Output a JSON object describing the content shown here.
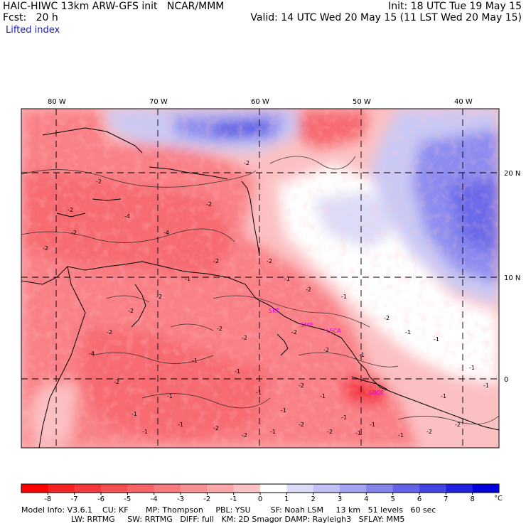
{
  "header": {
    "line1_left": "HAIC-HIWC 13km ARW-GFS init   NCAR/MMM",
    "line1_right": "Init: 18 UTC Tue 19 May 15",
    "line2_left": "Fcst:   20 h",
    "line2_right": "Valid: 14 UTC Wed 20 May 15 (11 LST Wed 20 May 15)",
    "line3": "Lifted index"
  },
  "map": {
    "lon_labels": [
      "80 W",
      "70 W",
      "60 W",
      "50 W",
      "40 W"
    ],
    "lat_labels": [
      "20 N",
      "10 N",
      "0"
    ],
    "contour_labels": [
      "-2",
      "-2",
      "-2",
      "-4",
      "-2",
      "-2",
      "-2",
      "-4",
      "-2",
      "-2",
      "-2",
      "-2",
      "-1",
      "-1",
      "-1",
      "-1",
      "-1",
      "-1",
      "-1",
      "-2",
      "-1",
      "-1",
      "-1",
      "-1",
      "-2",
      "-2",
      "-1",
      "-1",
      "-1",
      "-2",
      "-1",
      "-2",
      "-1",
      "-2",
      "-2",
      "-1",
      "-2",
      "-2",
      "-2",
      "-4",
      "-2",
      "-1",
      "-1",
      "-2",
      "-2",
      "-1",
      "-2",
      "-2",
      "-1",
      "-1",
      "-1"
    ],
    "station_labels": [
      "SKT",
      "SMP",
      "LSCA",
      "SBQE"
    ],
    "colors": {
      "warm_dark": "#f5333f",
      "warm_mid": "#f98086",
      "warm_light": "#fbc0c2",
      "neutral": "#ffffff",
      "cool_light": "#c9c9f5",
      "cool_mid": "#8c8cf0",
      "cool_dark": "#3c3ce0",
      "station": "#e000e0"
    }
  },
  "colorbar": {
    "labels": [
      "-8",
      "-7",
      "-6",
      "-5",
      "-4",
      "-3",
      "-2",
      "-1",
      "0",
      "1",
      "2",
      "3",
      "4",
      "5",
      "6",
      "7",
      "8"
    ],
    "unit": "°C",
    "colors": [
      "#ff0000",
      "#f52224",
      "#f5383c",
      "#f54e52",
      "#f66468",
      "#f67a7e",
      "#f79095",
      "#f8a6aa",
      "#fac2c4",
      "#ffffff",
      "#dcdcf8",
      "#c0c0f4",
      "#a2a2f0",
      "#8484ec",
      "#6464e8",
      "#4444e4",
      "#2222e0",
      "#0000dc"
    ]
  },
  "footer": {
    "line1": "Model Info: V3.6.1    CU: KF       MP: Thompson     PBL: YSU        SF: Noah LSM     13 km   51 levels   60 sec",
    "line2": "                    LW: RRTMG     SW: RRTMG   DIFF: full   KM: 2D Smagor DAMP: Rayleigh3   SFLAY: MM5"
  }
}
